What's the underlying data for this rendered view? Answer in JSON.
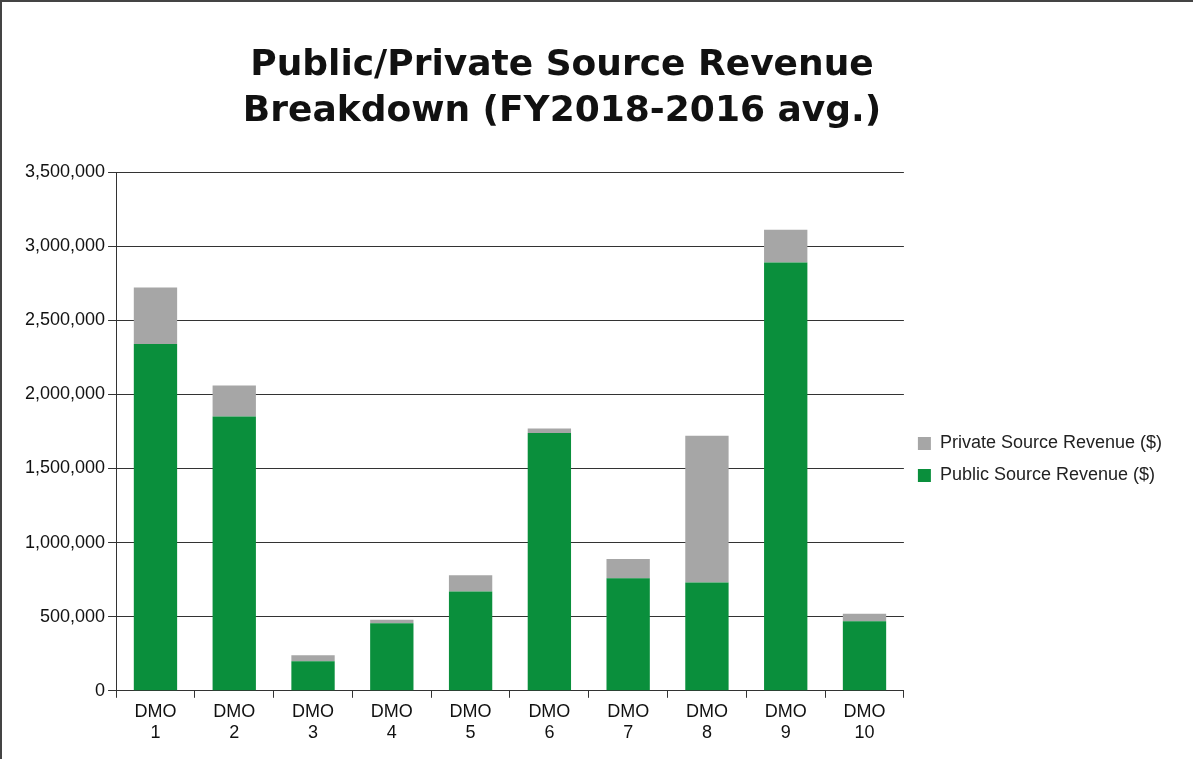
{
  "chart_data": {
    "type": "bar",
    "title": "Public/Private Source Revenue Breakdown (FY2018-2016 avg.)",
    "categories": [
      "DMO 1",
      "DMO 2",
      "DMO 3",
      "DMO 4",
      "DMO 5",
      "DMO 6",
      "DMO 7",
      "DMO 8",
      "DMO 9",
      "DMO 10"
    ],
    "series": [
      {
        "name": "Public Source Revenue ($)",
        "color": "#0a8f3c",
        "values": [
          2340000,
          1850000,
          200000,
          455000,
          670000,
          1740000,
          760000,
          730000,
          2890000,
          470000
        ]
      },
      {
        "name": "Private Source Revenue ($)",
        "color": "#a6a6a6",
        "values": [
          380000,
          210000,
          40000,
          25000,
          110000,
          30000,
          130000,
          990000,
          220000,
          50000
        ]
      }
    ],
    "stacked": true,
    "ylim": [
      0,
      3500000
    ],
    "yticks": [
      {
        "value": 0,
        "label": "0"
      },
      {
        "value": 500000,
        "label": "500,000"
      },
      {
        "value": 1000000,
        "label": "1,000,000"
      },
      {
        "value": 1500000,
        "label": "1,500,000"
      },
      {
        "value": 2000000,
        "label": "2,000,000"
      },
      {
        "value": 2500000,
        "label": "2,500,000"
      },
      {
        "value": 3000000,
        "label": "3,000,000"
      },
      {
        "value": 3500000,
        "label": "3,500,000"
      }
    ],
    "grid": "y",
    "legend": "right"
  }
}
